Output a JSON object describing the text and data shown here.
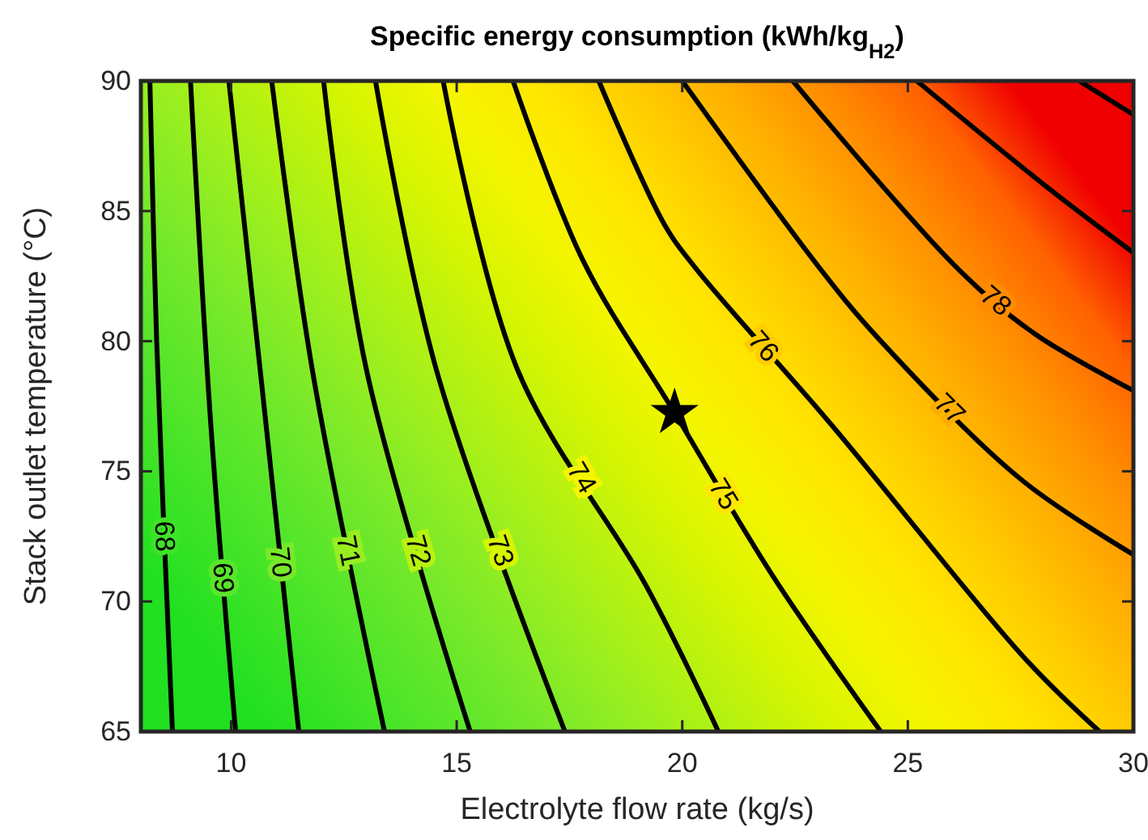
{
  "chart_data": {
    "type": "line",
    "title": "Specific energy consumption (kWh/kg$_{H2}$)",
    "xlabel": "Electrolyte flow rate (kg/s)",
    "ylabel": "Stack outlet temperature (°C)",
    "xlim": [
      8,
      30
    ],
    "ylim": [
      65,
      90
    ],
    "xticks": [
      10,
      15,
      20,
      25,
      30
    ],
    "yticks": [
      65,
      70,
      75,
      80,
      85,
      90
    ],
    "grid": false,
    "legend": false,
    "line_style": "solid",
    "marker": "none",
    "colors": [
      "#20e020",
      "#3de326",
      "#5ae62a",
      "#78e92a",
      "#98ee20",
      "#b8f210",
      "#d8f500",
      "#f5f500",
      "#ffe600",
      "#ffcc00",
      "#ffae00",
      "#ff8c00",
      "#ff6000",
      "#f00000"
    ],
    "series": [
      {
        "name": "68",
        "color": "#000000",
        "x": [
          8.2,
          8.35,
          8.7
        ],
        "values": [
          90,
          80,
          65
        ]
      },
      {
        "name": "69",
        "color": "#000000",
        "x": [
          9.1,
          9.55,
          10.1
        ],
        "values": [
          90,
          76.8,
          65
        ]
      },
      {
        "name": "70",
        "color": "#000000",
        "x": [
          9.95,
          10.7,
          11.5
        ],
        "values": [
          90,
          78,
          65
        ]
      },
      {
        "name": "71",
        "color": "#000000",
        "x": [
          10.9,
          11.8,
          13.4
        ],
        "values": [
          90,
          78.9,
          65
        ]
      },
      {
        "name": "72",
        "color": "#000000",
        "x": [
          12.05,
          13.0,
          15.3
        ],
        "values": [
          90,
          78.9,
          65
        ]
      },
      {
        "name": "73",
        "color": "#000000",
        "x": [
          13.2,
          14.55,
          17.4
        ],
        "values": [
          90,
          78.9,
          65
        ]
      },
      {
        "name": "74",
        "color": "#000000",
        "x": [
          14.7,
          16.35,
          19.2,
          20.8
        ],
        "values": [
          90,
          78.9,
          70.6,
          65
        ]
      },
      {
        "name": "75",
        "color": "#000000",
        "x": [
          16.25,
          17.8,
          19.83,
          22.0,
          24.4
        ],
        "values": [
          90,
          83.1,
          77.25,
          71,
          65
        ]
      },
      {
        "name": "76",
        "color": "#000000",
        "x": [
          18.15,
          19.6,
          20.3,
          23.3,
          27.6,
          29.25
        ],
        "values": [
          90,
          84.5,
          82.8,
          76.8,
          67.8,
          65
        ]
      },
      {
        "name": "77",
        "color": "#000000",
        "x": [
          20.0,
          23.05,
          24.35,
          27.5,
          30
        ],
        "values": [
          90,
          82.8,
          80.1,
          74.7,
          71.8
        ]
      },
      {
        "name": "78",
        "color": "#000000",
        "x": [
          22.45,
          26.1,
          27.8,
          30
        ],
        "values": [
          90,
          82.8,
          80.3,
          78.1
        ]
      },
      {
        "color": "#000000",
        "x": [
          25.2,
          28.1,
          30
        ],
        "values": [
          90,
          85.9,
          83.4
        ]
      },
      {
        "color": "#000000",
        "x": [
          28.8,
          30
        ],
        "values": [
          90,
          88.7
        ]
      },
      {
        "type": "scatter",
        "marker": "star",
        "color": "#000000",
        "x": [
          19.83
        ],
        "values": [
          77.25
        ]
      }
    ]
  }
}
